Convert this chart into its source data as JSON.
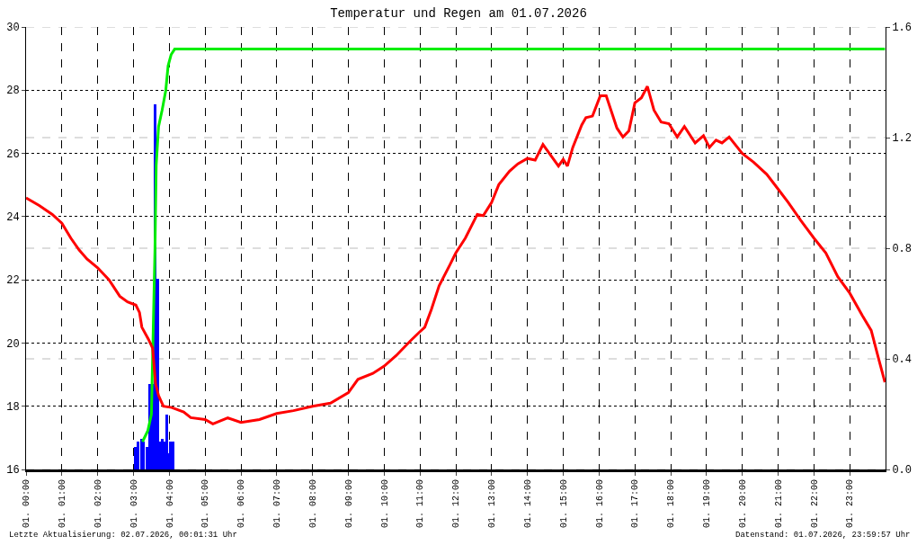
{
  "chart_data": {
    "type": "line",
    "title": "Temperatur und Regen am 01.07.2026",
    "xlim": [
      "2026-07-01T00:00",
      "2026-07-02T00:00"
    ],
    "xticks": [
      {
        "value": "2026-07-01T00:00",
        "label": "01. 00:00"
      },
      {
        "value": "2026-07-01T01:00",
        "label": "01. 01:00"
      },
      {
        "value": "2026-07-01T02:00",
        "label": "01. 02:00"
      },
      {
        "value": "2026-07-01T03:00",
        "label": "01. 03:00"
      },
      {
        "value": "2026-07-01T04:00",
        "label": "01. 04:00"
      },
      {
        "value": "2026-07-01T05:00",
        "label": "01. 05:00"
      },
      {
        "value": "2026-07-01T06:00",
        "label": "01. 06:00"
      },
      {
        "value": "2026-07-01T07:00",
        "label": "01. 07:00"
      },
      {
        "value": "2026-07-01T08:00",
        "label": "01. 08:00"
      },
      {
        "value": "2026-07-01T09:00",
        "label": "01. 09:00"
      },
      {
        "value": "2026-07-01T10:00",
        "label": "01. 10:00"
      },
      {
        "value": "2026-07-01T11:00",
        "label": "01. 11:00"
      },
      {
        "value": "2026-07-01T12:00",
        "label": "01. 12:00"
      },
      {
        "value": "2026-07-01T13:00",
        "label": "01. 13:00"
      },
      {
        "value": "2026-07-01T14:00",
        "label": "01. 14:00"
      },
      {
        "value": "2026-07-01T15:00",
        "label": "01. 15:00"
      },
      {
        "value": "2026-07-01T16:00",
        "label": "01. 16:00"
      },
      {
        "value": "2026-07-01T17:00",
        "label": "01. 17:00"
      },
      {
        "value": "2026-07-01T18:00",
        "label": "01. 18:00"
      },
      {
        "value": "2026-07-01T19:00",
        "label": "01. 19:00"
      },
      {
        "value": "2026-07-01T20:00",
        "label": "01. 20:00"
      },
      {
        "value": "2026-07-01T21:00",
        "label": "01. 21:00"
      },
      {
        "value": "2026-07-01T22:00",
        "label": "01. 22:00"
      },
      {
        "value": "2026-07-01T23:00",
        "label": "01. 23:00"
      }
    ],
    "ylim": [
      16,
      30
    ],
    "yticks": [
      16,
      18,
      20,
      22,
      24,
      26,
      28,
      30
    ],
    "y2lim": [
      0,
      1.6
    ],
    "y2ticks": [
      {
        "value": 0,
        "label": "0.0"
      },
      {
        "value": 0.4,
        "label": "0.4"
      },
      {
        "value": 0.8,
        "label": "0.8"
      },
      {
        "value": 1.2,
        "label": "1.2"
      },
      {
        "value": 1.6,
        "label": "1.6"
      }
    ],
    "grid": true,
    "legend": false,
    "marker": "none",
    "line_style": "solid",
    "series": [
      {
        "type": "bar",
        "color": "#0000ff",
        "axis": "y2",
        "x": [
          "2026-07-01T03:03",
          "2026-07-01T03:08",
          "2026-07-01T03:13",
          "2026-07-01T03:17",
          "2026-07-01T03:22",
          "2026-07-01T03:27",
          "2026-07-01T03:32",
          "2026-07-01T03:36",
          "2026-07-01T03:40",
          "2026-07-01T03:43",
          "2026-07-01T03:48",
          "2026-07-01T03:52",
          "2026-07-01T03:55",
          "2026-07-01T03:58",
          "2026-07-01T04:02",
          "2026-07-01T04:07"
        ],
        "values": [
          0.08,
          0.1,
          0.11,
          0.1,
          0.08,
          0.31,
          0.31,
          1.32,
          0.69,
          0.1,
          0.11,
          0.1,
          0.2,
          0.06,
          0.1,
          0.1
        ]
      },
      {
        "type": "line",
        "color": "#00ee00",
        "axis": "y2",
        "x": [
          "2026-07-01T03:15",
          "2026-07-01T03:24",
          "2026-07-01T03:30",
          "2026-07-01T03:31",
          "2026-07-01T03:33",
          "2026-07-01T03:36",
          "2026-07-01T03:38",
          "2026-07-01T03:42",
          "2026-07-01T03:48",
          "2026-07-01T03:54",
          "2026-07-01T03:58",
          "2026-07-01T04:03",
          "2026-07-01T04:09",
          "2026-07-01T23:59"
        ],
        "values": [
          0.1,
          0.14,
          0.2,
          0.3,
          0.5,
          0.8,
          1.1,
          1.24,
          1.3,
          1.37,
          1.46,
          1.5,
          1.52,
          1.52
        ]
      },
      {
        "color": "#ff0000",
        "x": [
          "2026-07-01T00:00",
          "2026-07-01T00:22",
          "2026-07-01T00:44",
          "2026-07-01T01:00",
          "2026-07-01T01:15",
          "2026-07-01T01:29",
          "2026-07-01T01:42",
          "2026-07-01T02:00",
          "2026-07-01T02:19",
          "2026-07-01T02:37",
          "2026-07-01T02:50",
          "2026-07-01T03:04",
          "2026-07-01T03:10",
          "2026-07-01T03:14",
          "2026-07-01T03:25",
          "2026-07-01T03:32",
          "2026-07-01T03:37",
          "2026-07-01T03:42",
          "2026-07-01T03:50",
          "2026-07-01T04:04",
          "2026-07-01T04:24",
          "2026-07-01T04:36",
          "2026-07-01T05:00",
          "2026-07-01T05:13",
          "2026-07-01T05:38",
          "2026-07-01T06:00",
          "2026-07-01T06:31",
          "2026-07-01T07:00",
          "2026-07-01T07:28",
          "2026-07-01T08:00",
          "2026-07-01T08:30",
          "2026-07-01T09:00",
          "2026-07-01T09:16",
          "2026-07-01T09:41",
          "2026-07-01T10:00",
          "2026-07-01T10:20",
          "2026-07-01T10:44",
          "2026-07-01T11:00",
          "2026-07-01T11:08",
          "2026-07-01T11:19",
          "2026-07-01T11:32",
          "2026-07-01T11:50",
          "2026-07-01T12:00",
          "2026-07-01T12:16",
          "2026-07-01T12:36",
          "2026-07-01T12:46",
          "2026-07-01T13:00",
          "2026-07-01T13:12",
          "2026-07-01T13:30",
          "2026-07-01T13:44",
          "2026-07-01T14:00",
          "2026-07-01T14:13",
          "2026-07-01T14:26",
          "2026-07-01T14:52",
          "2026-07-01T15:00",
          "2026-07-01T15:07",
          "2026-07-01T15:16",
          "2026-07-01T15:31",
          "2026-07-01T15:38",
          "2026-07-01T15:49",
          "2026-07-01T16:02",
          "2026-07-01T16:12",
          "2026-07-01T16:30",
          "2026-07-01T16:40",
          "2026-07-01T16:50",
          "2026-07-01T17:00",
          "2026-07-01T17:11",
          "2026-07-01T17:21",
          "2026-07-01T17:32",
          "2026-07-01T17:44",
          "2026-07-01T17:57",
          "2026-07-01T18:11",
          "2026-07-01T18:23",
          "2026-07-01T18:41",
          "2026-07-01T18:55",
          "2026-07-01T19:05",
          "2026-07-01T19:16",
          "2026-07-01T19:26",
          "2026-07-01T19:38",
          "2026-07-01T20:00",
          "2026-07-01T20:19",
          "2026-07-01T20:41",
          "2026-07-01T21:00",
          "2026-07-01T21:17",
          "2026-07-01T21:38",
          "2026-07-01T22:00",
          "2026-07-01T22:20",
          "2026-07-01T22:40",
          "2026-07-01T23:00",
          "2026-07-01T23:21",
          "2026-07-01T23:36",
          "2026-07-01T23:49",
          "2026-07-01T23:59"
        ],
        "values": [
          24.59,
          24.35,
          24.07,
          23.79,
          23.32,
          22.94,
          22.66,
          22.38,
          22.0,
          21.48,
          21.3,
          21.2,
          20.97,
          20.5,
          20.12,
          19.84,
          18.71,
          18.34,
          18.0,
          17.96,
          17.82,
          17.64,
          17.58,
          17.44,
          17.63,
          17.49,
          17.58,
          17.77,
          17.86,
          18.0,
          18.1,
          18.43,
          18.85,
          19.04,
          19.27,
          19.6,
          20.07,
          20.36,
          20.5,
          21.06,
          21.81,
          22.47,
          22.85,
          23.32,
          24.07,
          24.03,
          24.45,
          25.01,
          25.44,
          25.67,
          25.84,
          25.79,
          26.28,
          25.6,
          25.81,
          25.6,
          26.19,
          26.9,
          27.13,
          27.18,
          27.82,
          27.82,
          26.8,
          26.52,
          26.71,
          27.6,
          27.76,
          28.12,
          27.37,
          26.99,
          26.94,
          26.52,
          26.85,
          26.33,
          26.56,
          26.19,
          26.42,
          26.33,
          26.52,
          26.0,
          25.72,
          25.34,
          24.87,
          24.45,
          23.88,
          23.32,
          22.85,
          22.1,
          21.58,
          20.87,
          20.4,
          19.46,
          18.76
        ]
      }
    ],
    "annotations": [
      "Letzte Aktualisierung: 02.07.2026, 00:01:31 Uhr",
      "Datenstand: 01.07.2026, 23:59:57 Uhr"
    ]
  }
}
